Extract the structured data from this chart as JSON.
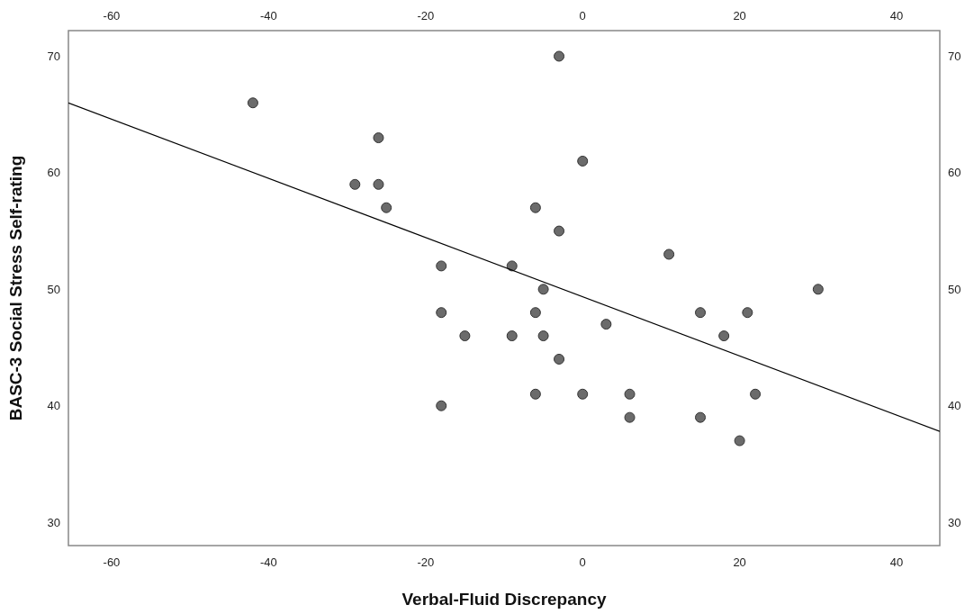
{
  "chart_data": {
    "type": "scatter",
    "xlabel": "Verbal-Fluid Discrepancy",
    "ylabel": "BASC-3 Social Stress Self-rating",
    "xlim": [
      -65.5,
      45.5
    ],
    "xticks": [
      -60,
      -40,
      -20,
      0,
      20,
      40
    ],
    "x2lim": [
      -65.5,
      45.5
    ],
    "x2ticks": [
      -60,
      -40,
      -20,
      0,
      20,
      40
    ],
    "ylim": [
      28,
      72.2
    ],
    "yticks": [
      30,
      40,
      50,
      60,
      70
    ],
    "y2lim": [
      28,
      72.2
    ],
    "y2ticks": [
      30,
      40,
      50,
      60,
      70
    ],
    "grid": false,
    "marker": "circle",
    "series": [
      {
        "color": "#6b6b6b",
        "x": [
          -42,
          -26,
          -29,
          -26,
          -25,
          -18,
          -18,
          -15,
          -18,
          -3,
          0,
          -6,
          -3,
          -9,
          11,
          -5,
          -6,
          -9,
          -5,
          -3,
          -6,
          0,
          6,
          6,
          3,
          15,
          21,
          18,
          22,
          15,
          20,
          30
        ],
        "values": [
          66,
          63,
          59,
          59,
          57,
          52,
          48,
          46,
          40,
          70,
          61,
          57,
          55,
          52,
          53,
          50,
          48,
          46,
          46,
          44,
          41,
          41,
          41,
          39,
          47,
          48,
          48,
          46,
          41,
          39,
          37,
          50
        ]
      },
      {
        "type": "line",
        "color": "#000000",
        "marker": "none",
        "line_style": "solid",
        "x": [
          -65.5,
          45.5
        ],
        "values": [
          66.0,
          37.8
        ]
      }
    ]
  }
}
